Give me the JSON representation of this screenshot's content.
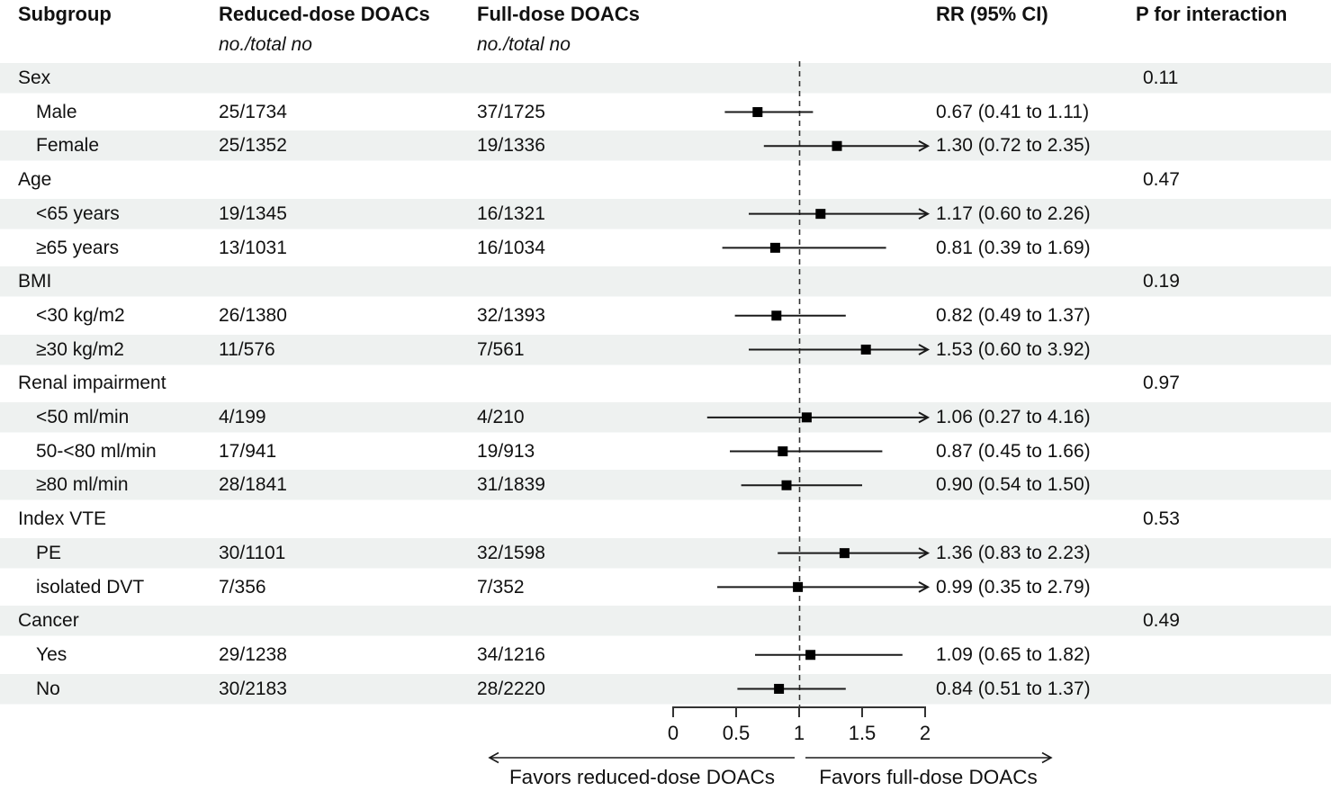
{
  "header": {
    "col_subgroup": "Subgroup",
    "col_reduced": "Reduced-dose DOACs",
    "col_reduced_sub": "no./total no",
    "col_full": "Full-dose DOACs",
    "col_full_sub": "no./total no",
    "col_rr": "RR (95% CI)",
    "col_p": "P for interaction"
  },
  "chart_data": {
    "type": "forest",
    "x_axis": {
      "ticks": [
        0,
        0.5,
        1,
        1.5,
        2
      ],
      "tick_labels": [
        "0",
        "0.5",
        "1",
        "1.5",
        "2"
      ],
      "range": [
        0,
        2
      ],
      "reference_line": 1,
      "clip_arrow_above": 2
    },
    "axis_labels": {
      "left": "Favors reduced-dose DOACs",
      "right": "Favors full-dose DOACs"
    },
    "rows": [
      {
        "kind": "section",
        "label": "Sex",
        "p_interaction": "0.11"
      },
      {
        "kind": "item",
        "label": "Male",
        "reduced": "25/1734",
        "full": "37/1725",
        "rr": 0.67,
        "ci_low": 0.41,
        "ci_high": 1.11,
        "rr_text": "0.67 (0.41 to 1.11)",
        "arrow": false
      },
      {
        "kind": "item",
        "label": "Female",
        "reduced": "25/1352",
        "full": "19/1336",
        "rr": 1.3,
        "ci_low": 0.72,
        "ci_high": 2.35,
        "rr_text": "1.30 (0.72 to 2.35)",
        "arrow": true
      },
      {
        "kind": "section",
        "label": "Age",
        "p_interaction": "0.47"
      },
      {
        "kind": "item",
        "label": "<65 years",
        "reduced": "19/1345",
        "full": "16/1321",
        "rr": 1.17,
        "ci_low": 0.6,
        "ci_high": 2.26,
        "rr_text": "1.17 (0.60 to 2.26)",
        "arrow": true
      },
      {
        "kind": "item",
        "label": "≥65 years",
        "reduced": "13/1031",
        "full": "16/1034",
        "rr": 0.81,
        "ci_low": 0.39,
        "ci_high": 1.69,
        "rr_text": "0.81 (0.39 to 1.69)",
        "arrow": false
      },
      {
        "kind": "section",
        "label": "BMI",
        "p_interaction": "0.19"
      },
      {
        "kind": "item",
        "label": "<30 kg/m2",
        "reduced": "26/1380",
        "full": "32/1393",
        "rr": 0.82,
        "ci_low": 0.49,
        "ci_high": 1.37,
        "rr_text": "0.82 (0.49 to 1.37)",
        "arrow": false
      },
      {
        "kind": "item",
        "label": "≥30 kg/m2",
        "reduced": "11/576",
        "full": "7/561",
        "rr": 1.53,
        "ci_low": 0.6,
        "ci_high": 3.92,
        "rr_text": "1.53 (0.60 to 3.92)",
        "arrow": true
      },
      {
        "kind": "section",
        "label": "Renal impairment",
        "p_interaction": "0.97"
      },
      {
        "kind": "item",
        "label": "<50 ml/min",
        "reduced": "4/199",
        "full": "4/210",
        "rr": 1.06,
        "ci_low": 0.27,
        "ci_high": 4.16,
        "rr_text": "1.06 (0.27 to 4.16)",
        "arrow": true
      },
      {
        "kind": "item",
        "label": "50-<80 ml/min",
        "reduced": "17/941",
        "full": "19/913",
        "rr": 0.87,
        "ci_low": 0.45,
        "ci_high": 1.66,
        "rr_text": "0.87 (0.45 to 1.66)",
        "arrow": false
      },
      {
        "kind": "item",
        "label": "≥80 ml/min",
        "reduced": "28/1841",
        "full": "31/1839",
        "rr": 0.9,
        "ci_low": 0.54,
        "ci_high": 1.5,
        "rr_text": "0.90 (0.54 to 1.50)",
        "arrow": false
      },
      {
        "kind": "section",
        "label": "Index VTE",
        "p_interaction": "0.53"
      },
      {
        "kind": "item",
        "label": "PE",
        "reduced": "30/1101",
        "full": "32/1598",
        "rr": 1.36,
        "ci_low": 0.83,
        "ci_high": 2.23,
        "rr_text": "1.36 (0.83 to 2.23)",
        "arrow": true
      },
      {
        "kind": "item",
        "label": "isolated DVT",
        "reduced": "7/356",
        "full": "7/352",
        "rr": 0.99,
        "ci_low": 0.35,
        "ci_high": 2.79,
        "rr_text": "0.99 (0.35 to 2.79)",
        "arrow": true
      },
      {
        "kind": "section",
        "label": "Cancer",
        "p_interaction": "0.49"
      },
      {
        "kind": "item",
        "label": "Yes",
        "reduced": "29/1238",
        "full": "34/1216",
        "rr": 1.09,
        "ci_low": 0.65,
        "ci_high": 1.82,
        "rr_text": "1.09 (0.65 to 1.82)",
        "arrow": false
      },
      {
        "kind": "item",
        "label": "No",
        "reduced": "30/2183",
        "full": "28/2220",
        "rr": 0.84,
        "ci_low": 0.51,
        "ci_high": 1.37,
        "rr_text": "0.84 (0.51 to 1.37)",
        "arrow": false
      }
    ]
  },
  "colors": {
    "text": "#111111",
    "row_shade": "#eef1f0",
    "ci_line": "#1a1a1a",
    "marker": "#000000",
    "reference_line": "#333333",
    "axis": "#333333"
  }
}
